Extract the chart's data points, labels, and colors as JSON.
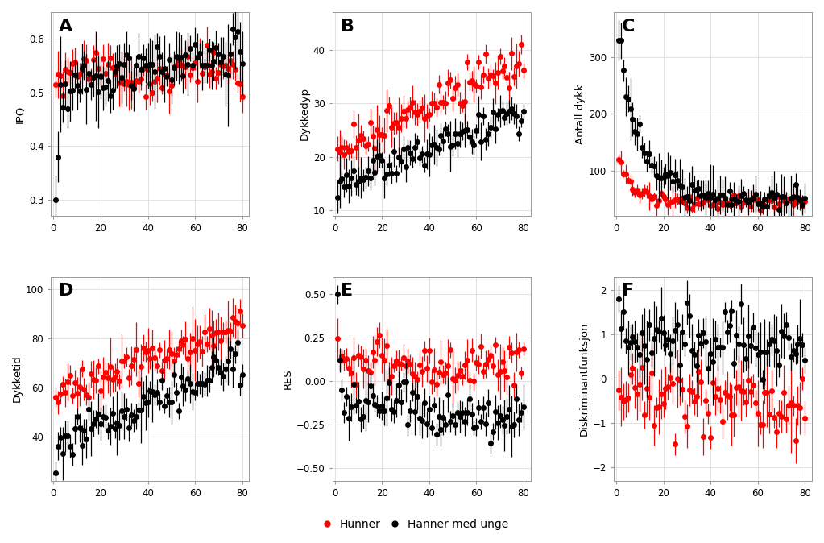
{
  "panels": [
    {
      "label": "A",
      "ylabel": "IPQ",
      "ylim": [
        0.27,
        0.65
      ],
      "yticks": [
        0.3,
        0.4,
        0.5,
        0.6
      ]
    },
    {
      "label": "B",
      "ylabel": "Dykkedyp",
      "ylim": [
        9,
        47
      ],
      "yticks": [
        10,
        20,
        30,
        40
      ]
    },
    {
      "label": "C",
      "ylabel": "Antall dykk",
      "ylim": [
        20,
        380
      ],
      "yticks": [
        100,
        200,
        300
      ]
    },
    {
      "label": "D",
      "ylabel": "Dykketid",
      "ylim": [
        22,
        105
      ],
      "yticks": [
        40,
        60,
        80,
        100
      ]
    },
    {
      "label": "E",
      "ylabel": "RES",
      "ylim": [
        -0.57,
        0.6
      ],
      "yticks": [
        -0.5,
        -0.25,
        0.0,
        0.25,
        0.5
      ]
    },
    {
      "label": "F",
      "ylabel": "Diskriminantfunksjon",
      "ylim": [
        -2.3,
        2.3
      ],
      "yticks": [
        -2,
        -1,
        0,
        1,
        2
      ]
    }
  ],
  "xlim": [
    -1,
    83
  ],
  "xticks": [
    0,
    20,
    40,
    60,
    80
  ],
  "red_color": "#FF0000",
  "black_color": "#000000",
  "background_color": "#FFFFFF",
  "grid_color": "#DDDDDD",
  "legend_red": "Hunner",
  "legend_black": "Hanner med unge",
  "n_points": 80
}
